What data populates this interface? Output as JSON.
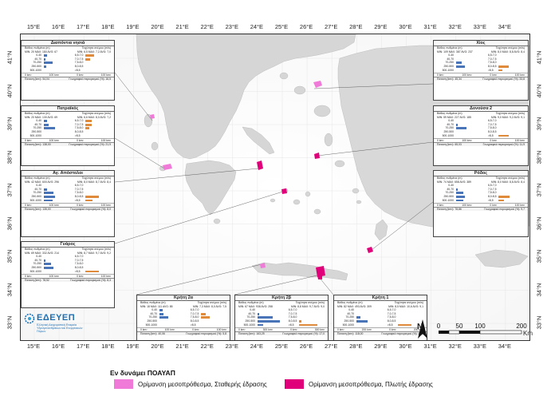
{
  "longitude_ticks": [
    "15°E",
    "16°E",
    "17°E",
    "18°E",
    "19°E",
    "20°E",
    "21°E",
    "22°E",
    "23°E",
    "24°E",
    "25°E",
    "26°E",
    "27°E",
    "28°E",
    "29°E",
    "30°E",
    "31°E",
    "32°E",
    "33°E",
    "34°E"
  ],
  "latitude_ticks": [
    "41°N",
    "40°N",
    "39°N",
    "38°N",
    "37°N",
    "36°N",
    "35°N",
    "34°N",
    "33°N"
  ],
  "colors": {
    "land": "#d9d9d9",
    "land_dark": "#b8b8b8",
    "fixed_base": "#f07ad8",
    "floating_base": "#e0007a",
    "depth_bar": "#4a74b8",
    "wind_bar": "#e08a3c"
  },
  "common": {
    "depth_header": "Βάθος πυθμένα (m)",
    "wind_header": "Ταχύτητα ανέμου (m/s)",
    "depth_classes": [
      "0-40",
      "40-70",
      "70-250",
      "250-500",
      "500-1000"
    ],
    "wind_classes": [
      "6,5-7,0",
      "7,0-7,5",
      "7,5-8,0",
      "8,0-8,5",
      ">8,5"
    ],
    "area_label": "Έκταση (km²)",
    "overlap_label": "Γεωγραφικό περιορισμού (%)",
    "axis_left_zero": "0 km²",
    "axis_right_zero": "0 km²"
  },
  "panels": [
    {
      "id": "diapontia",
      "title": "Διαπόντια νησιά",
      "depth_stats": "MIN: 20   MAX: 180   AVG: 67",
      "wind_stats": "MIN: 6,5   MAX: 7,2   AVG: 7,0",
      "depth_values": [
        0.12,
        0.05,
        0.3,
        0.08,
        0.0
      ],
      "wind_values": [
        0.35,
        0.2,
        0.0,
        0.0,
        0.0
      ],
      "axis_left_max": "100 km²",
      "axis_right_max": "100 km²",
      "area": "54,04",
      "overlap": "16,5"
    },
    {
      "id": "patraikos",
      "title": "Πατραϊκός",
      "depth_stats": "MIN: 20   MAX: 130   AVG: 69",
      "wind_stats": "MIN: 6,6   MAX: 8,0   AVG: 7,2",
      "depth_values": [
        0.12,
        0.18,
        0.4,
        0.0,
        0.0
      ],
      "wind_values": [
        0.25,
        0.25,
        0.15,
        0.0,
        0.0
      ],
      "axis_left_max": "100 km²",
      "axis_right_max": "100 km²",
      "area": "138,00",
      "overlap": "21,9"
    },
    {
      "id": "agioi-apostoloi",
      "title": "Αγ. Απόστολοι",
      "depth_stats": "MIN: 42   MAX: 600   AVG: 296",
      "wind_stats": "MIN: 8,0   MAX: 8,7   AVG: 8,4",
      "depth_values": [
        0.0,
        0.1,
        0.35,
        0.4,
        0.3
      ],
      "wind_values": [
        0.0,
        0.0,
        0.0,
        0.55,
        0.3
      ],
      "axis_left_max": "100 km²",
      "axis_right_max": "100 km²",
      "area": "135,00",
      "overlap": "8,0"
    },
    {
      "id": "gyaros",
      "title": "Γυάρος",
      "depth_stats": "MIN: 69   MAX: 332   AVG: 214",
      "wind_stats": "MIN: 8,7   MAX: 9,7   AVG: 9,2",
      "depth_values": [
        0.0,
        0.05,
        0.25,
        0.35,
        0.0
      ],
      "wind_values": [
        0.0,
        0.0,
        0.0,
        0.0,
        0.55
      ],
      "axis_left_max": "100 km²",
      "axis_right_max": "100 km²",
      "area": "78,52",
      "overlap": "8,3"
    },
    {
      "id": "chios",
      "title": "Χίος",
      "depth_stats": "MIN: 109   MAX: 387   AVG: 237",
      "wind_stats": "MIN: 8,0   MAX: 8,8   AVG: 8,4",
      "depth_values": [
        0.0,
        0.0,
        0.2,
        0.3,
        0.0
      ],
      "wind_values": [
        0.0,
        0.0,
        0.0,
        0.4,
        0.15
      ],
      "axis_left_max": "100 km²",
      "axis_right_max": "100 km²",
      "area": "45,34",
      "overlap": "33,8"
    },
    {
      "id": "donoussa",
      "title": "Δονούσα 2",
      "depth_stats": "MIN: 59   MAX: 227   AVG: 185",
      "wind_stats": "MIN: 9,0   MAX: 9,2   AVG: 9,1",
      "depth_values": [
        0.0,
        0.05,
        0.35,
        0.0,
        0.0
      ],
      "wind_values": [
        0.0,
        0.0,
        0.0,
        0.0,
        0.4
      ],
      "axis_left_max": "100 km²",
      "axis_right_max": "100 km²",
      "area": "65,03",
      "overlap": "11,9"
    },
    {
      "id": "rodos",
      "title": "Ρόδος",
      "depth_stats": "MIN: 74   MAX: 658   AVG: 389",
      "wind_stats": "MIN: 8,0   MAX: 8,8   AVG: 8,4",
      "depth_values": [
        0.0,
        0.05,
        0.25,
        0.3,
        0.25
      ],
      "wind_values": [
        0.0,
        0.0,
        0.0,
        0.45,
        0.2
      ],
      "axis_left_max": "100 km²",
      "axis_right_max": "100 km²",
      "area": "78,86",
      "overlap": "9,7"
    },
    {
      "id": "kriti-2a",
      "title": "Κρήτη 2α",
      "depth_stats": "MIN: 18   MAX: 111   AVG: 85",
      "wind_stats": "MIN: 7,3   MAX: 8,0   AVG: 7,5",
      "depth_values": [
        0.1,
        0.15,
        0.3,
        0.0,
        0.0
      ],
      "wind_values": [
        0.0,
        0.2,
        0.35,
        0.0,
        0.0
      ],
      "axis_left_max": "100 km²",
      "axis_right_max": "100 km²",
      "area": "40,06",
      "overlap": "5,8"
    },
    {
      "id": "kriti-2v",
      "title": "Κρήτη 2β",
      "depth_stats": "MIN: 67   MAX: 938   AVG: 258",
      "wind_stats": "MIN: 8,8   MAX: 9,7   AVG: 9,0",
      "depth_values": [
        0.0,
        0.05,
        0.55,
        0.8,
        0.2
      ],
      "wind_values": [
        0.0,
        0.0,
        0.0,
        0.1,
        0.75
      ],
      "axis_left_max": "300 km²",
      "axis_right_max": "300 km²",
      "area": "163,25",
      "overlap": "17,0"
    },
    {
      "id": "kriti-1",
      "title": "Κρήτη 1",
      "depth_stats": "MIN: 82   MAX: 493   AVG: 309",
      "wind_stats": "MIN: 8,5   MAX: 10,6   AVG: 9,1",
      "depth_values": [
        0.0,
        0.0,
        0.15,
        0.4,
        0.0
      ],
      "wind_values": [
        0.0,
        0.0,
        0.0,
        0.0,
        0.55
      ],
      "axis_left_max": "200 km²",
      "axis_right_max": "200 km²",
      "area": "118,00",
      "overlap": "12,0"
    }
  ],
  "logo": {
    "name": "ΕΔΕΥΕΠ",
    "subtitle": "Ελληνική Διαχειριστική Εταιρεία Υδρογονανθράκων και Ενεργειακών Πόρων"
  },
  "scale": {
    "labels": [
      "0",
      "50",
      "100",
      "200"
    ],
    "unit": "Km"
  },
  "north_label": "N",
  "legend": {
    "title": "Εν δυνάμει ΠΟΑΥΑΠ",
    "fixed_label": "Ορίμανση μεσοπρόθεσμα, Σταθερής έδρασης",
    "floating_label": "Ορίμανση μεσοπρόθεσμα, Πλωτής έδρασης"
  }
}
